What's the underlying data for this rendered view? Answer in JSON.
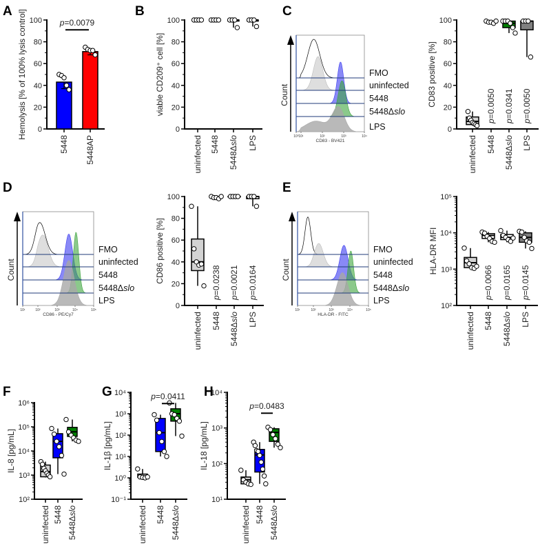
{
  "chart_data": [
    {
      "panel": "A",
      "type": "bar",
      "ylabel": "Hemolysis [% of 100% lysis control]",
      "yscale": "linear",
      "ylim": [
        0,
        100
      ],
      "yticks": [
        0,
        20,
        40,
        60,
        80,
        100
      ],
      "ytick_labels": [
        "0",
        "20",
        "40",
        "60",
        "80",
        "100"
      ],
      "categories": [
        "5448",
        "5448AP"
      ],
      "groups": [
        {
          "color": "#0000ff",
          "mean": 43,
          "sd": 6,
          "points": [
            50,
            49,
            47,
            40,
            36
          ]
        },
        {
          "color": "#ff0000",
          "mean": 71,
          "sd": 3,
          "points": [
            75,
            73,
            72,
            72,
            68
          ]
        }
      ],
      "brackets": [
        {
          "from": 0,
          "to": 1,
          "y": 91,
          "label": "=0.0079"
        }
      ],
      "pvalues": []
    },
    {
      "panel": "B",
      "type": "box",
      "ylabel": "viable  CD209⁺ cell [%]",
      "yscale": "linear",
      "ylim": [
        0,
        100
      ],
      "yticks": [
        0,
        20,
        40,
        60,
        80,
        100
      ],
      "ytick_labels": [
        "0",
        "20",
        "40",
        "60",
        "80",
        "100"
      ],
      "categories": [
        "uninfected",
        "5448",
        "5448Δslo",
        "LPS"
      ],
      "groups": [
        {
          "color": "#ffffff",
          "box": [
            100,
            100,
            100,
            100,
            100
          ],
          "points": [
            100,
            100,
            100,
            100
          ]
        },
        {
          "color": "#ffffff",
          "box": [
            100,
            100,
            100,
            100,
            100
          ],
          "points": [
            100,
            100,
            100,
            100
          ]
        },
        {
          "color": "#ffffff",
          "box": [
            93,
            99,
            100,
            100,
            100
          ],
          "points": [
            100,
            100,
            100,
            93
          ]
        },
        {
          "color": "#ffffff",
          "box": [
            94,
            99,
            100,
            100,
            100
          ],
          "points": [
            100,
            100,
            100,
            94
          ]
        }
      ],
      "brackets": [],
      "pvalues": []
    },
    {
      "panel": "C",
      "type": "box",
      "ylabel": "CD83 positive [%]",
      "yscale": "linear",
      "ylim": [
        0,
        100
      ],
      "yticks": [
        0,
        20,
        40,
        60,
        80,
        100
      ],
      "ytick_labels": [
        "0",
        "20",
        "40",
        "60",
        "80",
        "100"
      ],
      "categories": [
        "uninfected",
        "5448",
        "5448Δslo",
        "LPS"
      ],
      "groups": [
        {
          "color": "#d3d3d3",
          "box": [
            3,
            4,
            7,
            11,
            16
          ],
          "points": [
            16,
            10,
            8,
            6,
            5,
            4,
            3
          ]
        },
        {
          "color": "#ffffff",
          "box": [
            97,
            98,
            98,
            99,
            99
          ],
          "points": [
            99,
            98,
            98,
            97,
            99
          ]
        },
        {
          "color": "#008000",
          "box": [
            88,
            93,
            97,
            99,
            99
          ],
          "points": [
            99,
            99,
            99,
            97,
            93,
            88
          ]
        },
        {
          "color": "#808080",
          "box": [
            66,
            91,
            99,
            99,
            99
          ],
          "points": [
            99,
            99,
            99,
            66
          ]
        }
      ],
      "brackets": [],
      "pvalues": [
        "",
        "=0.0050",
        "=0.0341",
        "=0.0050"
      ]
    },
    {
      "panel": "D",
      "type": "box",
      "ylabel": "CD86 positive [%]",
      "yscale": "linear",
      "ylim": [
        0,
        100
      ],
      "yticks": [
        0,
        20,
        40,
        60,
        80,
        100
      ],
      "ytick_labels": [
        "0",
        "20",
        "40",
        "60",
        "80",
        "100"
      ],
      "categories": [
        "uninfected",
        "5448",
        "5448Δslo",
        "LPS"
      ],
      "groups": [
        {
          "color": "#d3d3d3",
          "box": [
            18,
            32,
            40,
            61,
            91
          ],
          "points": [
            91,
            52,
            40,
            37,
            38,
            18
          ]
        },
        {
          "color": "#ffffff",
          "box": [
            98,
            99,
            99,
            100,
            100
          ],
          "points": [
            100,
            99,
            99,
            98,
            100
          ]
        },
        {
          "color": "#ffffff",
          "box": [
            100,
            100,
            100,
            100,
            100
          ],
          "points": [
            100,
            100,
            100,
            100
          ]
        },
        {
          "color": "#ffffff",
          "box": [
            91,
            98,
            100,
            100,
            100
          ],
          "points": [
            100,
            100,
            100,
            91
          ]
        }
      ],
      "brackets": [],
      "pvalues": [
        "",
        "=0.0238",
        "=0.0021",
        "=0.0164"
      ]
    },
    {
      "panel": "E",
      "type": "box",
      "ylabel": "HLA-DR MFI",
      "yscale": "log",
      "ylim": [
        100,
        100000
      ],
      "yticks": [
        100,
        1000,
        10000,
        100000
      ],
      "ytick_labels": [
        "10²",
        "10³",
        "10⁴",
        "10⁵"
      ],
      "categories": [
        "uninfected",
        "5448",
        "5448Δslo",
        "LPS"
      ],
      "groups": [
        {
          "color": "#d3d3d3",
          "box": [
            1050,
            1100,
            1500,
            2100,
            3800
          ],
          "points": [
            3800,
            1700,
            1400,
            1100,
            1050,
            1200
          ]
        },
        {
          "color": "#ffffff",
          "box": [
            5500,
            7000,
            8500,
            9500,
            10500
          ],
          "points": [
            10500,
            9800,
            8000,
            7000,
            5800,
            5500
          ]
        },
        {
          "color": "#ffffff",
          "box": [
            5500,
            6500,
            7500,
            9000,
            11500
          ],
          "points": [
            11500,
            8500,
            7500,
            6500,
            5800,
            7200
          ]
        },
        {
          "color": "#808080",
          "box": [
            3700,
            5500,
            7500,
            10000,
            11000
          ],
          "points": [
            11000,
            10500,
            7500,
            6000,
            5500,
            3700
          ]
        }
      ],
      "brackets": [],
      "pvalues": [
        "",
        "=0.0066",
        "=0.0165",
        "=0.0145"
      ]
    },
    {
      "panel": "F",
      "type": "box",
      "ylabel": "IL-8 [pg/mL]",
      "yscale": "log",
      "ylim": [
        100,
        1000000
      ],
      "yticks": [
        100,
        1000,
        10000,
        100000,
        1000000
      ],
      "ytick_labels": [
        "10²",
        "10³",
        "10⁴",
        "10⁵",
        "10⁶"
      ],
      "categories": [
        "uninfected",
        "5448",
        "5448Δslo"
      ],
      "groups": [
        {
          "color": "#d3d3d3",
          "box": [
            800,
            850,
            1400,
            2600,
            3600
          ],
          "points": [
            3600,
            2800,
            1900,
            1500,
            1200,
            1000,
            850
          ]
        },
        {
          "color": "#0000ff",
          "box": [
            1100,
            5200,
            25000,
            52000,
            85000
          ],
          "points": [
            85000,
            50000,
            25000,
            15000,
            6500,
            1100
          ]
        },
        {
          "color": "#008000",
          "box": [
            25000,
            40000,
            62000,
            95000,
            200000
          ],
          "points": [
            200000,
            62000,
            45000,
            35000,
            28000,
            25000
          ]
        }
      ],
      "brackets": [],
      "pvalues": []
    },
    {
      "panel": "G",
      "type": "box",
      "ylabel": "IL-1β [pg/mL]",
      "yscale": "log",
      "ylim": [
        0.1,
        10000
      ],
      "yticks": [
        0.1,
        1,
        10,
        100,
        1000,
        10000
      ],
      "ytick_labels": [
        "10⁻¹",
        "10⁰",
        "10¹",
        "10²",
        "10³",
        "10⁴"
      ],
      "categories": [
        "uninfected",
        "5448",
        "5448Δslo"
      ],
      "groups": [
        {
          "color": "#d3d3d3",
          "box": [
            1,
            1.05,
            1.1,
            1.5,
            2.6
          ],
          "points": [
            2.6,
            1.1,
            1.05,
            1.0,
            1.1
          ]
        },
        {
          "color": "#0000ff",
          "box": [
            10,
            17,
            130,
            600,
            900
          ],
          "points": [
            900,
            500,
            130,
            50,
            17,
            10
          ]
        },
        {
          "color": "#008000",
          "box": [
            90,
            450,
            1000,
            1700,
            3200
          ],
          "points": [
            3200,
            1000,
            900,
            600,
            450,
            90
          ]
        }
      ],
      "brackets": [
        {
          "from": 1,
          "to": 2,
          "y": 3000,
          "label": "=0.0411"
        }
      ],
      "pvalues": []
    },
    {
      "panel": "H",
      "type": "box",
      "ylabel": "IL-18 [pg/mL]",
      "yscale": "log",
      "ylim": [
        10,
        10000
      ],
      "yticks": [
        10,
        100,
        1000,
        10000
      ],
      "ytick_labels": [
        "10¹",
        "10²",
        "10³",
        "10⁴"
      ],
      "categories": [
        "uninfected",
        "5448",
        "5448Δslo"
      ],
      "groups": [
        {
          "color": "#d3d3d3",
          "box": [
            26,
            27,
            35,
            42,
            65
          ],
          "points": [
            65,
            35,
            30,
            27,
            26
          ]
        },
        {
          "color": "#0000ff",
          "box": [
            27,
            58,
            175,
            250,
            400
          ],
          "points": [
            400,
            320,
            230,
            220,
            170,
            110,
            70,
            45,
            27
          ]
        },
        {
          "color": "#008000",
          "box": [
            280,
            420,
            750,
            950,
            1050
          ],
          "points": [
            1050,
            900,
            650,
            500,
            350,
            280
          ]
        }
      ],
      "brackets": [
        {
          "from": 1,
          "to": 2,
          "y": 2600,
          "label": "=0.0483"
        }
      ],
      "pvalues": []
    }
  ],
  "histograms": [
    {
      "panel": "C",
      "xlabel": "CD83 - BV421",
      "ytitle": "Count",
      "xticks": [
        "10⁰",
        "10¹",
        "10²",
        "10³",
        "10⁴"
      ]
    },
    {
      "panel": "D",
      "xlabel": "CD86 - PE/Cy7",
      "ytitle": "Count",
      "xticks": [
        "10¹",
        "10²",
        "10³",
        "10⁴",
        "10⁵"
      ]
    },
    {
      "panel": "E",
      "xlabel": "HLA-DR - FITC",
      "ytitle": "Count",
      "xticks": [
        "10¹",
        "10²",
        "10³",
        "10⁴",
        "10⁵"
      ]
    }
  ],
  "tracks": [
    {
      "name": "FMO",
      "color": "#ffffff"
    },
    {
      "name": "uninfected",
      "color": "#d3d3d3"
    },
    {
      "name": "5448",
      "color": "#3a3af0"
    },
    {
      "name": "5448Δslo",
      "color": "#3ea53e"
    },
    {
      "name": "LPS",
      "color": "#a8a8a8"
    }
  ],
  "p_symbol": "p"
}
